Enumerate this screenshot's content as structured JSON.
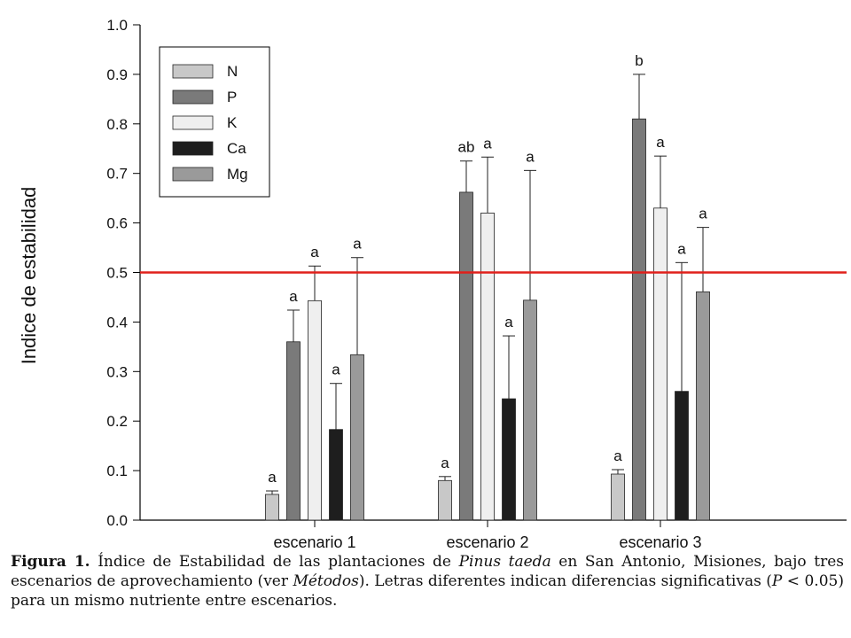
{
  "chart_data": {
    "type": "bar",
    "ylabel": "Indice de estabilidad",
    "xlabel": "",
    "ylim": [
      0,
      1.0
    ],
    "yticks": [
      "0.0",
      "0.1",
      "0.2",
      "0.3",
      "0.4",
      "0.5",
      "0.6",
      "0.7",
      "0.8",
      "0.9",
      "1.0"
    ],
    "categories": [
      "escenario 1",
      "escenario 2",
      "escenario 3"
    ],
    "legend_position": "top-left",
    "reference_line": {
      "value": 0.5,
      "color": "#e0201b"
    },
    "series": [
      {
        "name": "N",
        "color": "#c8c8c8",
        "values": [
          0.052,
          0.08,
          0.093
        ],
        "errors": [
          0.007,
          0.008,
          0.009
        ],
        "letters": [
          "a",
          "a",
          "a"
        ]
      },
      {
        "name": "P",
        "color": "#7a7a7a",
        "values": [
          0.36,
          0.662,
          0.81
        ],
        "errors": [
          0.064,
          0.063,
          0.09
        ],
        "letters": [
          "a",
          "ab",
          "b"
        ]
      },
      {
        "name": "K",
        "color": "#efefef",
        "values": [
          0.443,
          0.62,
          0.63
        ],
        "errors": [
          0.07,
          0.113,
          0.105
        ],
        "letters": [
          "a",
          "a",
          "a"
        ]
      },
      {
        "name": "Ca",
        "color": "#1e1e1e",
        "values": [
          0.183,
          0.245,
          0.26
        ],
        "errors": [
          0.093,
          0.127,
          0.26
        ],
        "letters": [
          "a",
          "a",
          "a"
        ]
      },
      {
        "name": "Mg",
        "color": "#9a9a9a",
        "values": [
          0.334,
          0.444,
          0.461
        ],
        "errors": [
          0.196,
          0.262,
          0.13
        ],
        "letters": [
          "a",
          "a",
          "a"
        ]
      }
    ]
  },
  "caption": {
    "label": "Figura 1.",
    "part1": " Índice de Estabilidad de las plantaciones de ",
    "species": "Pinus taeda",
    "part2": " en San Antonio, Misiones, bajo tres escenarios de aprovechamiento (ver ",
    "metodos": "Métodos",
    "part3": "). Letras diferentes indican diferencias significativas (",
    "p_symbol": "P",
    "part4": " < 0.05) para un mismo nutriente entre escenarios."
  }
}
